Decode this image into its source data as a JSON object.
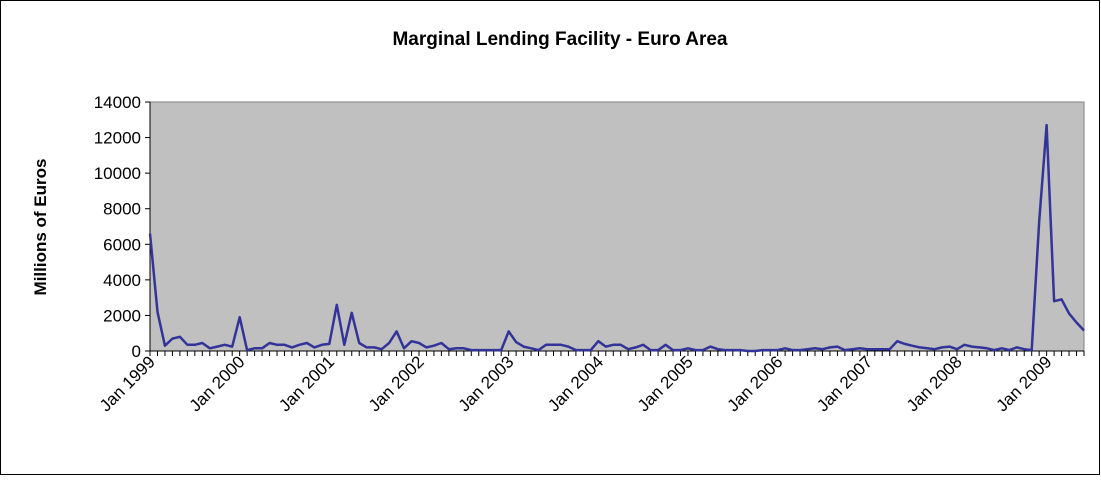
{
  "chart_data": {
    "type": "line",
    "title": "Marginal Lending Facility - Euro Area",
    "y_label": "Millions of Euros",
    "categories": [
      "Jan 1999",
      null,
      null,
      null,
      null,
      null,
      null,
      null,
      null,
      null,
      null,
      null,
      "Jan 2000",
      null,
      null,
      null,
      null,
      null,
      null,
      null,
      null,
      null,
      null,
      null,
      "Jan 2001",
      null,
      null,
      null,
      null,
      null,
      null,
      null,
      null,
      null,
      null,
      null,
      "Jan 2002",
      null,
      null,
      null,
      null,
      null,
      null,
      null,
      null,
      null,
      null,
      null,
      "Jan 2003",
      null,
      null,
      null,
      null,
      null,
      null,
      null,
      null,
      null,
      null,
      null,
      "Jan 2004",
      null,
      null,
      null,
      null,
      null,
      null,
      null,
      null,
      null,
      null,
      null,
      "Jan 2005",
      null,
      null,
      null,
      null,
      null,
      null,
      null,
      null,
      null,
      null,
      null,
      "Jan 2006",
      null,
      null,
      null,
      null,
      null,
      null,
      null,
      null,
      null,
      null,
      null,
      "Jan 2007",
      null,
      null,
      null,
      null,
      null,
      null,
      null,
      null,
      null,
      null,
      null,
      "Jan 2008",
      null,
      null,
      null,
      null,
      null,
      null,
      null,
      null,
      null,
      null,
      null,
      "Jan 2009",
      null,
      null,
      null,
      null,
      null
    ],
    "series": [
      {
        "name": "Marginal Lending Facility",
        "color": "#333399",
        "values": [
          6600,
          2200,
          300,
          700,
          800,
          350,
          350,
          450,
          150,
          250,
          350,
          250,
          1900,
          50,
          150,
          150,
          450,
          350,
          350,
          200,
          350,
          450,
          200,
          350,
          400,
          2600,
          350,
          2150,
          450,
          200,
          200,
          100,
          450,
          1100,
          150,
          550,
          450,
          200,
          300,
          450,
          100,
          150,
          150,
          50,
          50,
          50,
          50,
          50,
          1100,
          500,
          250,
          150,
          50,
          350,
          350,
          350,
          250,
          50,
          50,
          50,
          550,
          250,
          350,
          350,
          100,
          200,
          350,
          50,
          50,
          350,
          50,
          50,
          150,
          50,
          50,
          250,
          100,
          50,
          50,
          50,
          0,
          0,
          50,
          50,
          50,
          150,
          50,
          50,
          100,
          150,
          100,
          200,
          250,
          50,
          100,
          150,
          100,
          100,
          100,
          100,
          550,
          400,
          300,
          200,
          150,
          100,
          200,
          250,
          100,
          350,
          250,
          200,
          150,
          50,
          150,
          50,
          200,
          100,
          50,
          7300,
          12700,
          2800,
          2900,
          2100,
          1600,
          1150
        ]
      }
    ],
    "ylim": [
      0,
      14000
    ],
    "yticks": [
      0,
      2000,
      4000,
      6000,
      8000,
      10000,
      12000,
      14000
    ],
    "grid": false,
    "plot_background": "#c0c0c0"
  }
}
